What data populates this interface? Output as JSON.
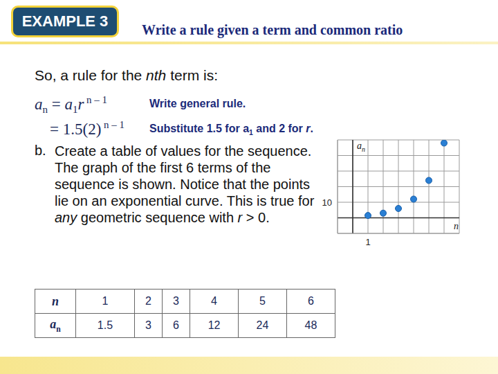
{
  "header": {
    "label": "EXAMPLE 3",
    "title": "Write a rule given a term and common ratio"
  },
  "intro": [
    {
      "text": "So, a rule for the "
    },
    {
      "text": "nth",
      "style": "i"
    },
    {
      "text": " term is:"
    }
  ],
  "steps": [
    {
      "math": [
        {
          "text": "a",
          "style": "i"
        },
        {
          "text": "n",
          "style": "sub"
        },
        {
          "text": " = "
        },
        {
          "text": "a",
          "style": "i"
        },
        {
          "text": "1",
          "style": "sub"
        },
        {
          "text": "r",
          "style": "i"
        },
        {
          "text": " n – 1",
          "style": "sup"
        }
      ],
      "note": [
        {
          "text": "Write general rule."
        }
      ]
    },
    {
      "math": [
        {
          "text": "= 1.5(2)"
        },
        {
          "text": " n – 1",
          "style": "sup"
        }
      ],
      "note": [
        {
          "text": "Substitute 1.5 for a"
        },
        {
          "text": "1",
          "style": "sub"
        },
        {
          "text": " and 2 for "
        },
        {
          "text": "r",
          "style": "i"
        },
        {
          "text": "."
        }
      ]
    }
  ],
  "part_b": {
    "label": "b.",
    "text": [
      {
        "text": "Create a table of values for the sequence. The graph of the first 6 terms of the sequence is shown. Notice that the points lie on an exponential curve. This is true for "
      },
      {
        "text": "any",
        "style": "i"
      },
      {
        "text": " geometric sequence with "
      },
      {
        "text": "r",
        "style": "i"
      },
      {
        "text": " > 0."
      }
    ]
  },
  "table": {
    "rows": [
      {
        "label": [
          {
            "text": "n",
            "style": "i"
          }
        ],
        "values": [
          1,
          2,
          3,
          4,
          5,
          6
        ]
      },
      {
        "label": [
          {
            "text": "a",
            "style": "i"
          },
          {
            "text": "n",
            "style": "sub"
          }
        ],
        "values": [
          1.5,
          3,
          6,
          12,
          24,
          48
        ]
      }
    ]
  },
  "chart_data": {
    "type": "scatter",
    "x_label": "n",
    "y_label": "an",
    "x": [
      1,
      2,
      3,
      4,
      5,
      6
    ],
    "values": [
      1.5,
      3,
      6,
      12,
      24,
      48
    ],
    "color": "#2a7fd4",
    "xlim": [
      -1,
      7
    ],
    "ylim": [
      -10,
      50
    ],
    "xticks": [
      1
    ],
    "yticks": [
      10
    ],
    "grid": true
  }
}
